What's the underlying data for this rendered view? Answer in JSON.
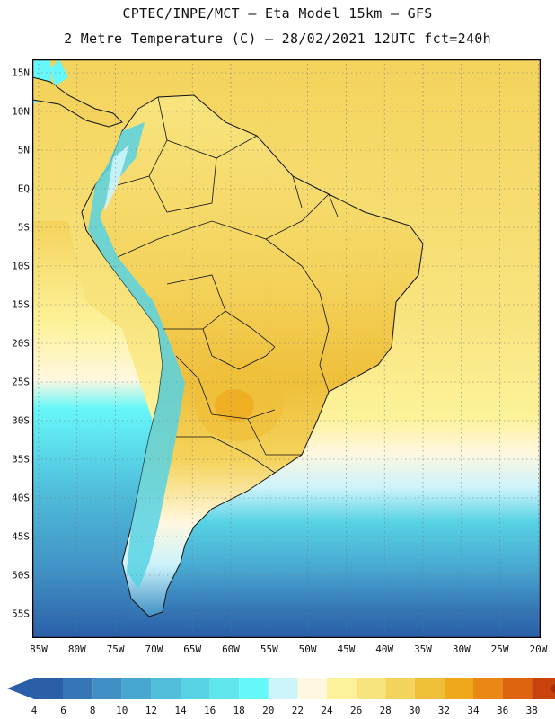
{
  "title": {
    "line1": "CPTEC/INPE/MCT –  Eta Model 15km – GFS",
    "line2": "2 Metre Temperature (C) – 28/02/2021 12UTC fct=240h"
  },
  "map": {
    "region": "South America",
    "lat_labels": [
      "15N",
      "10N",
      "5N",
      "EQ",
      "5S",
      "10S",
      "15S",
      "20S",
      "25S",
      "30S",
      "35S",
      "40S",
      "45S",
      "50S",
      "55S"
    ],
    "lon_labels": [
      "85W",
      "80W",
      "75W",
      "70W",
      "65W",
      "60W",
      "55W",
      "50W",
      "45W",
      "40W",
      "35W",
      "30W",
      "25W",
      "20W"
    ]
  },
  "legend": {
    "labels": [
      "4",
      "6",
      "8",
      "10",
      "12",
      "14",
      "16",
      "18",
      "20",
      "22",
      "24",
      "26",
      "28",
      "30",
      "32",
      "34",
      "36",
      "38"
    ],
    "colors": [
      "#2a5ea8",
      "#3577b5",
      "#3f8fc4",
      "#48a7d1",
      "#50bddb",
      "#57d2e4",
      "#5fe5ec",
      "#66f7fa",
      "#cdf3fb",
      "#fff7df",
      "#fdf29a",
      "#f8e47f",
      "#f4d35c",
      "#efbf3a",
      "#f0a81b",
      "#e98814",
      "#de6410",
      "#c8420c",
      "#a32b09"
    ]
  }
}
